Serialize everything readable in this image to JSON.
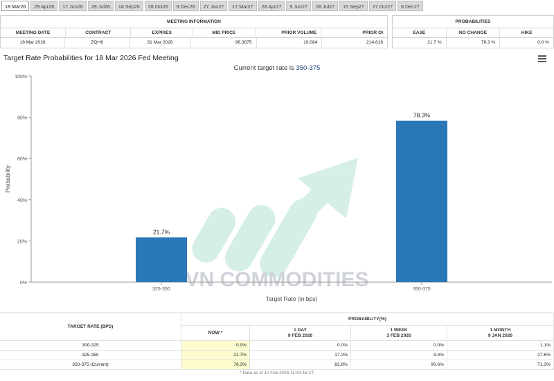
{
  "tabs": [
    {
      "label": "18 Mar26",
      "active": true
    },
    {
      "label": "29 Apr26"
    },
    {
      "label": "17 Jun26"
    },
    {
      "label": "29 Jul26"
    },
    {
      "label": "16 Sep26"
    },
    {
      "label": "28 Oct26"
    },
    {
      "label": "9 Dec26"
    },
    {
      "label": "27 Jan27"
    },
    {
      "label": "17 Mar27"
    },
    {
      "label": "28 Apr27"
    },
    {
      "label": "9 Jun27"
    },
    {
      "label": "28 Jul27"
    },
    {
      "label": "15 Sep27"
    },
    {
      "label": "27 Oct27"
    },
    {
      "label": "8 Dec27"
    }
  ],
  "meeting_info": {
    "header": "MEETING INFORMATION",
    "columns": [
      "MEETING DATE",
      "CONTRACT",
      "EXPIRES",
      "MID PRICE",
      "PRIOR VOLUME",
      "PRIOR OI"
    ],
    "values": [
      "18 Mar 2026",
      "ZQH6",
      "31 Mar 2026",
      "96.3875",
      "10,084",
      "214,616"
    ]
  },
  "probabilities": {
    "header": "PROBABILITIES",
    "columns": [
      "EASE",
      "NO CHANGE",
      "HIKE"
    ],
    "values": [
      "21.7 %",
      "78.3 %",
      "0.0 %"
    ]
  },
  "chart": {
    "title": "Target Rate Probabilities for 18 Mar 2026 Fed Meeting",
    "subtitle_prefix": "Current target rate is ",
    "subtitle_value": "350-375",
    "bar_color": "#2b78b9",
    "watermark_text": "VN COMMODITIES"
  },
  "chart_data": {
    "type": "bar",
    "title": "Target Rate Probabilities for 18 Mar 2026 Fed Meeting",
    "subtitle": "Current target rate is 350-375",
    "categories": [
      "325-350",
      "350-375"
    ],
    "values": [
      21.7,
      78.3
    ],
    "value_labels": [
      "21.7%",
      "78.3%"
    ],
    "xlabel": "Target Rate (in bps)",
    "ylabel": "Probability",
    "ylim": [
      0,
      100
    ],
    "yticks": [
      "0%",
      "20%",
      "40%",
      "60%",
      "80%",
      "100%"
    ],
    "grid": false,
    "legend": "none"
  },
  "rate_table": {
    "left_header": "TARGET RATE (BPS)",
    "prob_header": "PROBABILITY(%)",
    "columns": [
      {
        "title": "NOW *",
        "sub": ""
      },
      {
        "title": "1 DAY",
        "sub": "9 FEB 2026"
      },
      {
        "title": "1 WEEK",
        "sub": "3 FEB 2026"
      },
      {
        "title": "1 MONTH",
        "sub": "9 JAN 2026"
      }
    ],
    "rows": [
      {
        "label": "300-325",
        "values": [
          "0.0%",
          "0.0%",
          "0.0%",
          "1.1%"
        ]
      },
      {
        "label": "325-350",
        "values": [
          "21.7%",
          "17.2%",
          "9.4%",
          "27.6%"
        ]
      },
      {
        "label": "350-375 (Current)",
        "values": [
          "78.3%",
          "82.8%",
          "90.6%",
          "71.3%"
        ]
      }
    ],
    "footnote": "* Data as of 10 Feb 2026 11:43:16 CT"
  }
}
